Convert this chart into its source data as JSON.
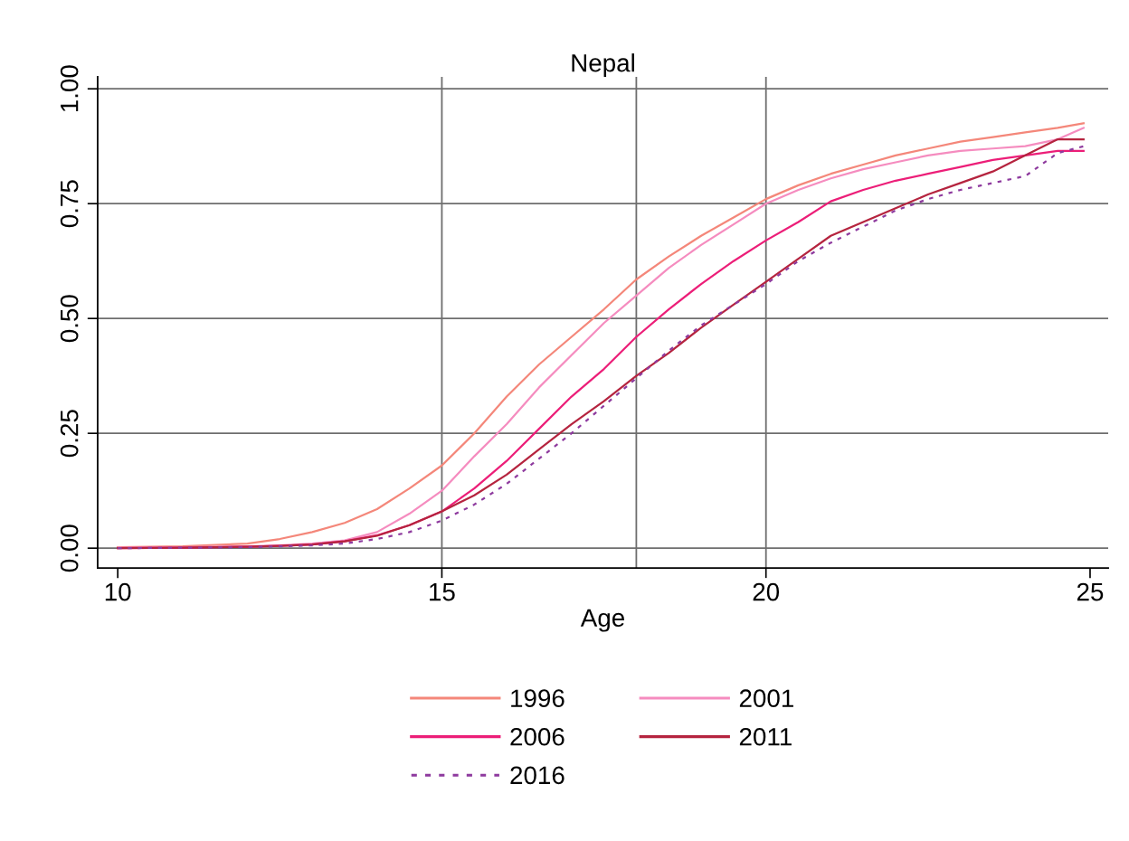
{
  "chart_data": {
    "type": "line",
    "title": "Nepal",
    "xlabel": "Age",
    "x": [
      10,
      11,
      12,
      12.5,
      13,
      13.5,
      14,
      14.5,
      15,
      15.5,
      16,
      16.5,
      17,
      17.5,
      18,
      18.5,
      19,
      19.5,
      20,
      20.5,
      21,
      21.5,
      22,
      22.5,
      23,
      23.5,
      24,
      24.5,
      24.9
    ],
    "series": [
      {
        "name": "1996",
        "color": "#f4877a",
        "values": [
          0.002,
          0.004,
          0.01,
          0.02,
          0.035,
          0.055,
          0.085,
          0.13,
          0.18,
          0.25,
          0.33,
          0.4,
          0.46,
          0.52,
          0.585,
          0.635,
          0.68,
          0.72,
          0.76,
          0.79,
          0.815,
          0.835,
          0.855,
          0.87,
          0.885,
          0.895,
          0.905,
          0.915,
          0.925
        ]
      },
      {
        "name": "2001",
        "color": "#f58cbf",
        "values": [
          0.001,
          0.002,
          0.004,
          0.006,
          0.01,
          0.017,
          0.035,
          0.075,
          0.125,
          0.2,
          0.27,
          0.35,
          0.42,
          0.49,
          0.55,
          0.61,
          0.66,
          0.705,
          0.75,
          0.78,
          0.805,
          0.825,
          0.84,
          0.855,
          0.865,
          0.87,
          0.875,
          0.89,
          0.915
        ]
      },
      {
        "name": "2006",
        "color": "#ec1e78",
        "values": [
          0.0,
          0.001,
          0.003,
          0.005,
          0.008,
          0.015,
          0.028,
          0.05,
          0.08,
          0.13,
          0.19,
          0.26,
          0.33,
          0.39,
          0.46,
          0.52,
          0.575,
          0.625,
          0.67,
          0.71,
          0.755,
          0.78,
          0.8,
          0.815,
          0.83,
          0.845,
          0.855,
          0.865,
          0.865
        ]
      },
      {
        "name": "2011",
        "color": "#b5243f",
        "values": [
          0.0,
          0.001,
          0.003,
          0.005,
          0.008,
          0.015,
          0.027,
          0.05,
          0.08,
          0.115,
          0.16,
          0.215,
          0.27,
          0.32,
          0.375,
          0.425,
          0.48,
          0.53,
          0.58,
          0.63,
          0.68,
          0.71,
          0.74,
          0.77,
          0.795,
          0.82,
          0.855,
          0.89,
          0.89
        ]
      },
      {
        "name": "2016",
        "color": "#8e3a9e",
        "line_style": "dotted",
        "values": [
          0.0,
          0.001,
          0.002,
          0.004,
          0.006,
          0.01,
          0.02,
          0.035,
          0.06,
          0.095,
          0.14,
          0.195,
          0.25,
          0.31,
          0.37,
          0.43,
          0.485,
          0.53,
          0.575,
          0.625,
          0.665,
          0.7,
          0.735,
          0.76,
          0.78,
          0.795,
          0.81,
          0.86,
          0.875
        ]
      }
    ],
    "xlim": [
      9.69,
      25.28
    ],
    "xticks": [
      10,
      15,
      20,
      25
    ],
    "ylim": [
      -0.043,
      1.026
    ],
    "yticks": [
      {
        "value": 0,
        "label": "0.00"
      },
      {
        "value": 0.25,
        "label": "0.25"
      },
      {
        "value": 0.5,
        "label": "0.50"
      },
      {
        "value": 0.75,
        "label": "0.75"
      },
      {
        "value": 1,
        "label": "1.00"
      }
    ],
    "grid": "y",
    "legend": "bottom",
    "line_style": "solid",
    "ref_lines": [
      {
        "axis": "x",
        "value": 15,
        "color": "#6e6e6e"
      },
      {
        "axis": "x",
        "value": 18,
        "color": "#6e6e6e"
      },
      {
        "axis": "x",
        "value": 20,
        "color": "#6e6e6e"
      }
    ]
  }
}
